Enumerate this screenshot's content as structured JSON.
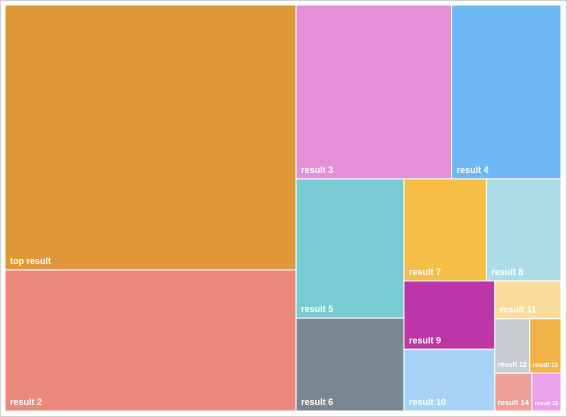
{
  "chart_data": {
    "type": "treemap",
    "categories": [
      "top result",
      "result 2",
      "result 3",
      "result 4",
      "result 5",
      "result 6",
      "result 7",
      "result 8",
      "result 9",
      "result 10",
      "result 11",
      "result 12",
      "result 13",
      "result 14",
      "result 15"
    ],
    "values": [
      77,
      41,
      27,
      19,
      15,
      10,
      8.4,
      7.6,
      6.2,
      5.6,
      2.5,
      1.9,
      1.7,
      1.4,
      1.1
    ],
    "colors": [
      "#E0973A",
      "#EC877B",
      "#E68FD9",
      "#6DB8F5",
      "#77CBD1",
      "#7B8790",
      "#F5BF45",
      "#ACDDE6",
      "#BC36A8",
      "#A8D2F7",
      "#F8DC9A",
      "#C8CDD1",
      "#F3B247",
      "#EEA098",
      "#EBA0EA"
    ]
  }
}
